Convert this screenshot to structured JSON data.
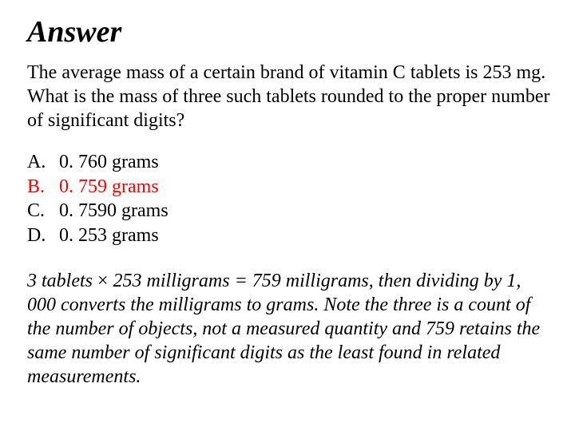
{
  "title": "Answer",
  "question": "The average mass of a certain brand of vitamin C tablets is 253 mg. What is the mass of three such tablets rounded to the proper number of significant digits?",
  "choices": [
    {
      "letter": "A.",
      "text": "0. 760 grams",
      "correct": false
    },
    {
      "letter": "B.",
      "text": "0. 759 grams",
      "correct": true
    },
    {
      "letter": "C.",
      "text": "0. 7590 grams",
      "correct": false
    },
    {
      "letter": "D.",
      "text": "0. 253 grams",
      "correct": false
    }
  ],
  "explanation_pre": "3 tablets ",
  "explanation_times": "×",
  "explanation_post": " 253 milligrams = 759 milligrams, then dividing by 1, 000 converts the milligrams to grams.  Note the three is a count of the number of objects, not a measured quantity and 759 retains the same number of significant digits as the least found in related measurements.",
  "colors": {
    "background": "#ffffff",
    "text": "#000000",
    "correct": "#ff0000"
  },
  "typography": {
    "title_fontsize": 38,
    "body_fontsize": 24,
    "font_family": "Times New Roman"
  }
}
